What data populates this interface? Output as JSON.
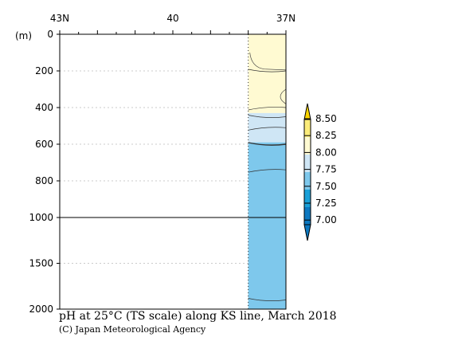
{
  "chart_data": {
    "type": "heatmap",
    "title": "pH at 25°C (TS scale) along KS line, March 2018",
    "credit": "(C) Japan Meteorological Agency",
    "ylabel": "(m)",
    "x_ticks": [
      "43N",
      "40",
      "37N"
    ],
    "xlim": [
      43,
      37
    ],
    "upper_depth_ticks": [
      "0",
      "200",
      "400",
      "600",
      "800",
      "1000"
    ],
    "lower_depth_ticks": [
      "1500",
      "2000"
    ],
    "upper_depth_range": [
      0,
      1000
    ],
    "lower_depth_range": [
      1000,
      2000
    ],
    "data_section": {
      "lat_range": [
        38.0,
        37.0
      ],
      "layers": [
        {
          "depth_from": 0,
          "depth_to": 430,
          "ph_class": "8.00-8.25"
        },
        {
          "depth_from": 430,
          "depth_to": 590,
          "ph_class": "7.75-8.00"
        },
        {
          "depth_from": 590,
          "depth_to": 2000,
          "ph_class": "7.50-7.75"
        }
      ],
      "contours": [
        {
          "depth_m": 200
        },
        {
          "depth_m": 400
        },
        {
          "depth_m": 450
        },
        {
          "depth_m": 510
        },
        {
          "depth_m": 600
        },
        {
          "depth_m": 740
        },
        {
          "depth_m": 1900
        }
      ]
    },
    "colorbar": {
      "labels": [
        "8.50",
        "8.25",
        "8.00",
        "7.75",
        "7.50",
        "7.25",
        "7.00"
      ],
      "colors": [
        "#fbd400",
        "#fbec7a",
        "#fffad2",
        "#cfe6f5",
        "#7ec8ec",
        "#1aa0d8",
        "#0d78c0"
      ]
    }
  }
}
